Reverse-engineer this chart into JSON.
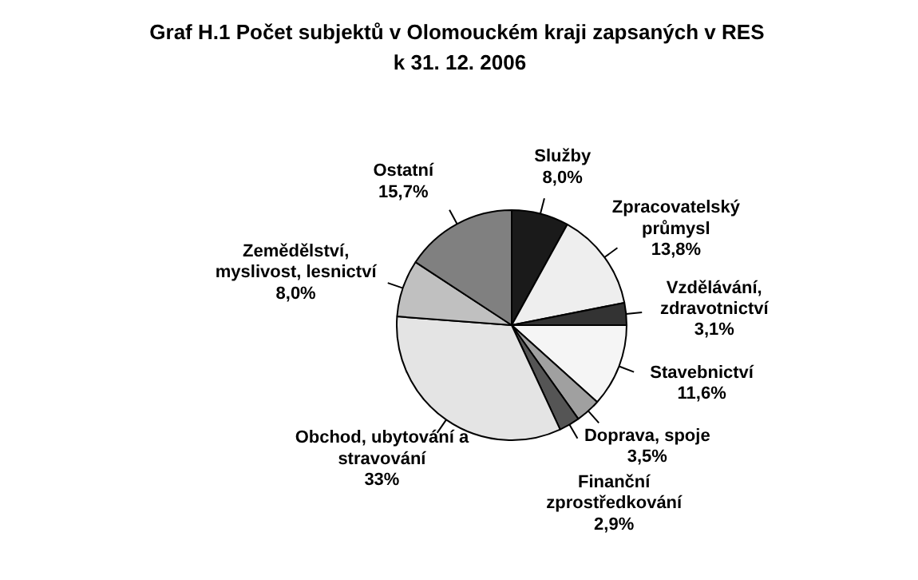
{
  "chart_data": {
    "type": "pie",
    "title": "Graf H.1  Počet subjektů v Olomouckém kraji zapsaných v RES\nk 31. 12. 2006",
    "categories": [
      "Služby",
      "Zpracovatelský průmysl",
      "Vzdělávání, zdravotnictví",
      "Stavebnictví",
      "Doprava, spoje",
      "Finanční zprostředkování",
      "Obchod, ubytování a stravování",
      "Zemědělství, myslivost, lesnictví",
      "Ostatní"
    ],
    "values": [
      8.0,
      13.8,
      3.1,
      11.6,
      3.5,
      2.9,
      33,
      8.0,
      15.7
    ],
    "value_labels": [
      "8,0%",
      "13,8%",
      "3,1%",
      "11,6%",
      "3,5%",
      "2,9%",
      "33%",
      "8,0%",
      "15,7%"
    ],
    "colors": [
      "#1a1a1a",
      "#eeeeee",
      "#333333",
      "#f5f5f5",
      "#a0a0a0",
      "#555555",
      "#e4e4e4",
      "#c0c0c0",
      "#808080"
    ]
  }
}
